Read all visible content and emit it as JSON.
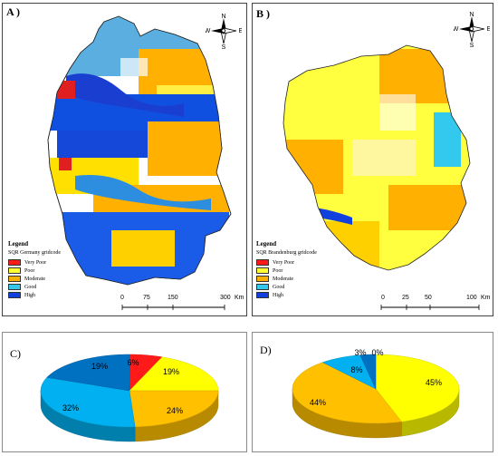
{
  "panel_a": {
    "label": "A )",
    "legend_title": "Legend",
    "legend_subtitle": "SQR Germany gridcode",
    "scale_labels": [
      "0",
      "75",
      "150",
      "300",
      "Km"
    ]
  },
  "panel_b": {
    "label": "B )",
    "legend_title": "Legend",
    "legend_subtitle": "SQR Brandenburg gridcode",
    "scale_labels": [
      "0",
      "25",
      "50",
      "100",
      "Km"
    ]
  },
  "compass": {
    "n": "N",
    "s": "S",
    "e": "E",
    "w": "W"
  },
  "classes": [
    {
      "label": "Very Poor",
      "color": "#ff1a1a"
    },
    {
      "label": "Poor",
      "color": "#ffff33"
    },
    {
      "label": "Moderate",
      "color": "#ffb000"
    },
    {
      "label": "Good",
      "color": "#33c8ee"
    },
    {
      "label": "High",
      "color": "#1040dd"
    }
  ],
  "chart_data": [
    {
      "type": "pie",
      "title": "C)",
      "categories": [
        "Very Poor",
        "Poor",
        "Moderate",
        "Good",
        "High"
      ],
      "values": [
        6,
        19,
        24,
        32,
        19
      ],
      "labels": [
        "6%",
        "19%",
        "24%",
        "32%",
        "19%"
      ],
      "colors": [
        "#ff1a1a",
        "#ffff00",
        "#ffc000",
        "#00b0f0",
        "#0070c0"
      ],
      "style": "3d"
    },
    {
      "type": "pie",
      "title": "D)",
      "categories": [
        "Very Poor",
        "Poor",
        "Moderate",
        "Good",
        "High"
      ],
      "values": [
        0,
        45,
        44,
        8,
        3
      ],
      "labels": [
        "0%",
        "45%",
        "44%",
        "8%",
        "3%"
      ],
      "colors": [
        "#ff1a1a",
        "#ffff00",
        "#ffc000",
        "#00b0f0",
        "#0070c0"
      ],
      "style": "3d"
    }
  ]
}
